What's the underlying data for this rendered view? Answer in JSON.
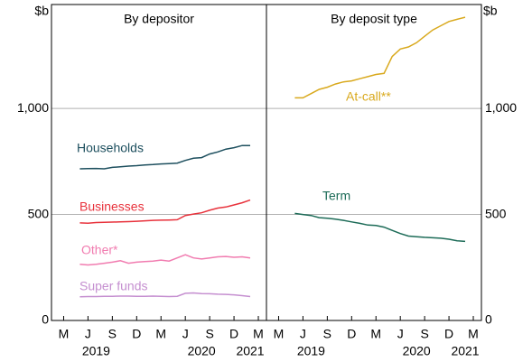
{
  "chart_data": [
    {
      "type": "line",
      "title": "By depositor",
      "y_label": "$b",
      "y_axis_side": "left",
      "x": [
        4,
        5,
        6,
        7,
        8,
        9,
        10,
        11,
        12,
        13,
        14,
        15,
        16,
        17,
        18,
        19,
        20,
        21,
        22,
        23,
        24,
        25
      ],
      "xlim": [
        0.5,
        27
      ],
      "xticks": [
        {
          "value": 2,
          "label": "M"
        },
        {
          "value": 5,
          "label": "J"
        },
        {
          "value": 8,
          "label": "S"
        },
        {
          "value": 11,
          "label": "D"
        },
        {
          "value": 14,
          "label": "M"
        },
        {
          "value": 17,
          "label": "J"
        },
        {
          "value": 20,
          "label": "S"
        },
        {
          "value": 23,
          "label": "D"
        },
        {
          "value": 26,
          "label": "M"
        }
      ],
      "year_ticks": [
        {
          "value": 6,
          "label": "2019"
        },
        {
          "value": 19,
          "label": "2020"
        },
        {
          "value": 25,
          "label": "2021"
        }
      ],
      "ylim": [
        0,
        1490
      ],
      "yticks": [
        0,
        500,
        {
          "value": 1000,
          "label": "1,000"
        }
      ],
      "grid": true,
      "series": [
        {
          "name": "Households",
          "color": "#1d4f5e",
          "values": [
            715,
            716,
            717,
            715,
            722,
            725,
            728,
            730,
            733,
            735,
            738,
            740,
            742,
            755,
            765,
            768,
            785,
            795,
            808,
            815,
            825,
            825
          ]
        },
        {
          "name": "Businesses",
          "color": "#e8323c",
          "values": [
            460,
            459,
            462,
            463,
            464,
            465,
            466,
            468,
            470,
            472,
            473,
            474,
            475,
            495,
            502,
            508,
            520,
            530,
            535,
            545,
            555,
            568
          ]
        },
        {
          "name": "Other*",
          "color": "#f17cb0",
          "values": [
            265,
            262,
            265,
            270,
            275,
            282,
            270,
            275,
            278,
            280,
            285,
            280,
            295,
            310,
            295,
            290,
            295,
            300,
            302,
            298,
            300,
            295
          ]
        },
        {
          "name": "Super funds",
          "color": "#c58fd0",
          "values": [
            112,
            113,
            113,
            114,
            114,
            115,
            115,
            114,
            114,
            115,
            114,
            113,
            114,
            128,
            130,
            127,
            126,
            124,
            123,
            121,
            117,
            113
          ]
        }
      ]
    },
    {
      "type": "line",
      "title": "By deposit type",
      "y_label": "$b",
      "y_axis_side": "right",
      "x": [
        4,
        5,
        6,
        7,
        8,
        9,
        10,
        11,
        12,
        13,
        14,
        15,
        16,
        17,
        18,
        19,
        20,
        21,
        22,
        23,
        24,
        25
      ],
      "xlim": [
        0.5,
        27
      ],
      "xticks": [
        {
          "value": 2,
          "label": "M"
        },
        {
          "value": 5,
          "label": "J"
        },
        {
          "value": 8,
          "label": "S"
        },
        {
          "value": 11,
          "label": "D"
        },
        {
          "value": 14,
          "label": "M"
        },
        {
          "value": 17,
          "label": "J"
        },
        {
          "value": 20,
          "label": "S"
        },
        {
          "value": 23,
          "label": "D"
        },
        {
          "value": 26,
          "label": "M"
        }
      ],
      "year_ticks": [
        {
          "value": 6,
          "label": "2019"
        },
        {
          "value": 19,
          "label": "2020"
        },
        {
          "value": 25,
          "label": "2021"
        }
      ],
      "ylim": [
        0,
        1490
      ],
      "yticks": [
        0,
        500,
        {
          "value": 1000,
          "label": "1,000"
        }
      ],
      "grid": true,
      "series": [
        {
          "name": "At-call**",
          "color": "#d9a91d",
          "values": [
            1050,
            1050,
            1070,
            1090,
            1100,
            1115,
            1125,
            1130,
            1140,
            1150,
            1160,
            1165,
            1245,
            1280,
            1290,
            1310,
            1340,
            1370,
            1390,
            1410,
            1420,
            1430
          ]
        },
        {
          "name": "Term",
          "color": "#1c6b57",
          "values": [
            505,
            500,
            495,
            485,
            482,
            478,
            472,
            465,
            458,
            450,
            448,
            440,
            425,
            410,
            398,
            395,
            392,
            390,
            388,
            383,
            376,
            373
          ]
        }
      ]
    }
  ]
}
